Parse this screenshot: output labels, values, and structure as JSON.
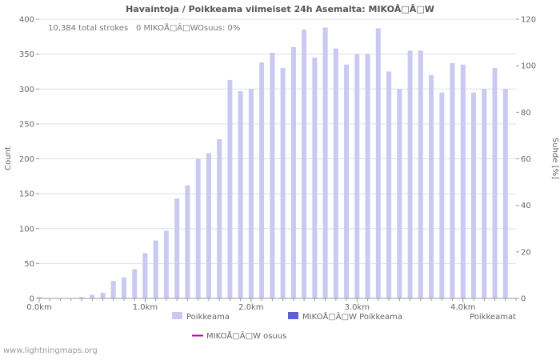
{
  "title": "Havaintoja / Poikkeama viimeiset 24h Asemalta: MIKOÅ□Â□W",
  "annotations": {
    "total_strokes": "10,384 total strokes",
    "station_strokes": "0 MIKOÅ□Â□W",
    "share": "Osuus: 0%"
  },
  "axes": {
    "left_label": "Count",
    "right_label": "Suhde [%]",
    "x_axis_title": "Poikkeamat",
    "left_ticks": [
      0,
      50,
      100,
      150,
      200,
      250,
      300,
      350,
      400
    ],
    "right_ticks": [
      0,
      20,
      40,
      60,
      80,
      100,
      120
    ],
    "x_tick_labels": [
      "0.0km",
      "1.0km",
      "2.0km",
      "3.0km",
      "4.0km"
    ]
  },
  "legend": {
    "items": [
      {
        "label": "Poikkeama",
        "color": "#c9c9f1",
        "type": "bar"
      },
      {
        "label": "MIKOÅ□Â□W Poikkeama",
        "color": "#5d5dd8",
        "type": "bar"
      },
      {
        "label": "MIKOÅ□Â□W osuus",
        "color": "#b000b0",
        "type": "line"
      }
    ]
  },
  "watermark": "www.lightningmaps.org",
  "colors": {
    "bar": "#c9c9f1",
    "station_bar": "#5d5dd8",
    "share_line": "#b000b0",
    "grid": "#e0e0e0",
    "tick": "#999999"
  },
  "chart_data": {
    "type": "bar",
    "title": "Havaintoja / Poikkeama viimeiset 24h Asemalta: MIKOÅ□Â□W",
    "xlabel": "Poikkeamat",
    "ylabel": "Count",
    "ylabel_right": "Suhde [%]",
    "ylim": [
      0,
      400
    ],
    "ylim_right": [
      0,
      120
    ],
    "xlim_km": [
      0,
      4.5
    ],
    "bin_width_km": 0.1,
    "grid": true,
    "legend_position": "bottom",
    "categories_km": [
      0.0,
      0.1,
      0.2,
      0.3,
      0.4,
      0.5,
      0.6,
      0.7,
      0.8,
      0.9,
      1.0,
      1.1,
      1.2,
      1.3,
      1.4,
      1.5,
      1.6,
      1.7,
      1.8,
      1.9,
      2.0,
      2.1,
      2.2,
      2.3,
      2.4,
      2.5,
      2.6,
      2.7,
      2.8,
      2.9,
      3.0,
      3.1,
      3.2,
      3.3,
      3.4,
      3.5,
      3.6,
      3.7,
      3.8,
      3.9,
      4.0,
      4.1,
      4.2,
      4.3,
      4.4
    ],
    "series": [
      {
        "name": "Poikkeama",
        "axis": "left",
        "type": "bar",
        "values": [
          2,
          0,
          0,
          0,
          2,
          5,
          8,
          25,
          30,
          42,
          65,
          83,
          97,
          143,
          162,
          200,
          208,
          228,
          313,
          297,
          300,
          338,
          352,
          330,
          360,
          385,
          345,
          388,
          358,
          335,
          350,
          350,
          387,
          325,
          300,
          355,
          355,
          320,
          295,
          337,
          335,
          295,
          300,
          330,
          300
        ]
      },
      {
        "name": "MIKOÅ□Â□W Poikkeama",
        "axis": "left",
        "type": "bar",
        "values": [
          0,
          0,
          0,
          0,
          0,
          0,
          0,
          0,
          0,
          0,
          0,
          0,
          0,
          0,
          0,
          0,
          0,
          0,
          0,
          0,
          0,
          0,
          0,
          0,
          0,
          0,
          0,
          0,
          0,
          0,
          0,
          0,
          0,
          0,
          0,
          0,
          0,
          0,
          0,
          0,
          0,
          0,
          0,
          0,
          0
        ]
      },
      {
        "name": "MIKOÅ□Â□W osuus",
        "axis": "right",
        "type": "line",
        "values": [
          0,
          0,
          0,
          0,
          0,
          0,
          0,
          0,
          0,
          0,
          0,
          0,
          0,
          0,
          0,
          0,
          0,
          0,
          0,
          0,
          0,
          0,
          0,
          0,
          0,
          0,
          0,
          0,
          0,
          0,
          0,
          0,
          0,
          0,
          0,
          0,
          0,
          0,
          0,
          0,
          0,
          0,
          0,
          0,
          0
        ]
      }
    ]
  }
}
